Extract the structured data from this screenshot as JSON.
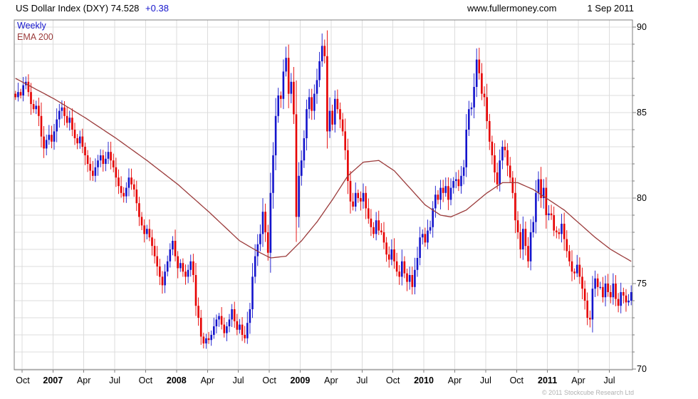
{
  "header": {
    "title": "US Dollar Index (DXY) 74.528",
    "change": "+0.38",
    "site": "www.fullermoney.com",
    "date": "1 Sep 2011"
  },
  "footer": {
    "copyright": "© 2011 Stockcube Research Ltd"
  },
  "colors": {
    "up": "#1414cc",
    "down": "#e60000",
    "ema": "#9b3b3b",
    "legend_weekly": "#1414cc",
    "legend_ema": "#9b3b3b",
    "change_text": "#1414cc",
    "grid": "#dcdcdc",
    "border": "#7f7f7f",
    "axis_text": "#000000",
    "copyright_text": "#b0b0b0"
  },
  "chart_data": {
    "type": "candlestick-with-line",
    "title": "US Dollar Index (DXY)",
    "timeframe": "Weekly",
    "overlay": "EMA 200",
    "last_price": 74.528,
    "change": 0.38,
    "as_of_date": "1 Sep 2011",
    "ylim": [
      70,
      90
    ],
    "yticks": [
      70,
      75,
      80,
      85,
      90
    ],
    "y_unit_gridlines": true,
    "xticklabels": [
      "Oct",
      "2007",
      "Apr",
      "Jul",
      "Oct",
      "2008",
      "Apr",
      "Jul",
      "Oct",
      "2009",
      "Apr",
      "Jul",
      "Oct",
      "2010",
      "Apr",
      "Jul",
      "Oct",
      "2011",
      "Apr",
      "Jul"
    ],
    "tick_week_indices": [
      3,
      15,
      27,
      39,
      51,
      63,
      75,
      87,
      99,
      111,
      123,
      135,
      147,
      159,
      171,
      183,
      195,
      207,
      219,
      231
    ],
    "weeks_total": 240,
    "series": [
      {
        "name": "Weekly",
        "style": "candles",
        "note": "weekly closes, estimated from chart, Oct 2006 - 1 Sep 2011",
        "closes": [
          85.9,
          86.2,
          86.0,
          86.6,
          86.8,
          86.2,
          85.5,
          85.2,
          85.4,
          84.8,
          83.6,
          82.9,
          83.4,
          83.7,
          83.3,
          83.9,
          84.6,
          85.1,
          85.3,
          84.8,
          84.4,
          84.7,
          84.0,
          83.5,
          83.2,
          83.6,
          83.0,
          82.5,
          82.0,
          81.6,
          81.3,
          81.8,
          82.2,
          82.5,
          82.0,
          82.3,
          82.7,
          82.2,
          81.8,
          81.2,
          80.7,
          80.3,
          80.1,
          80.6,
          81.2,
          80.8,
          80.5,
          79.7,
          78.9,
          78.4,
          77.9,
          78.2,
          77.7,
          77.2,
          76.6,
          76.0,
          75.4,
          74.9,
          75.7,
          76.3,
          77.0,
          77.5,
          76.6,
          75.9,
          76.2,
          75.7,
          75.4,
          75.8,
          76.3,
          75.5,
          73.7,
          73.0,
          71.9,
          71.5,
          71.8,
          71.7,
          72.0,
          72.5,
          72.9,
          73.1,
          72.6,
          72.1,
          72.5,
          72.9,
          73.5,
          72.8,
          72.3,
          72.6,
          72.0,
          71.8,
          72.7,
          73.5,
          75.4,
          76.6,
          77.3,
          77.9,
          79.2,
          78.0,
          76.8,
          80.3,
          82.5,
          84.8,
          86.0,
          85.8,
          87.4,
          88.2,
          86.1,
          86.8,
          84.9,
          78.9,
          81.3,
          82.2,
          83.5,
          85.2,
          85.9,
          85.1,
          86.1,
          86.9,
          88.0,
          88.9,
          88.3,
          83.9,
          85.1,
          84.3,
          85.8,
          85.2,
          84.6,
          83.9,
          82.8,
          81.0,
          79.8,
          79.5,
          80.3,
          80.0,
          79.8,
          80.3,
          79.4,
          78.8,
          78.3,
          77.9,
          78.7,
          78.1,
          78.0,
          77.4,
          76.7,
          76.4,
          77.0,
          76.3,
          75.7,
          75.4,
          76.3,
          75.6,
          75.1,
          75.5,
          74.8,
          75.8,
          76.5,
          77.7,
          77.9,
          77.4,
          78.1,
          78.3,
          79.4,
          80.2,
          79.9,
          80.6,
          80.3,
          80.7,
          79.9,
          80.6,
          81.0,
          81.1,
          80.7,
          81.3,
          81.8,
          84.0,
          85.2,
          85.3,
          86.5,
          88.1,
          87.3,
          86.1,
          85.9,
          84.5,
          83.3,
          82.5,
          81.5,
          80.8,
          82.2,
          83.0,
          82.8,
          81.9,
          81.2,
          80.3,
          78.7,
          78.0,
          77.0,
          78.2,
          77.2,
          76.3,
          78.0,
          78.6,
          80.3,
          81.1,
          80.0,
          80.6,
          79.0,
          79.1,
          79.0,
          78.1,
          78.0,
          77.9,
          78.5,
          77.6,
          76.9,
          76.3,
          75.7,
          75.6,
          76.1,
          75.4,
          74.7,
          74.0,
          73.0,
          72.9,
          74.7,
          75.3,
          74.8,
          74.8,
          74.2,
          75.0,
          74.5,
          74.2,
          75.0,
          74.1,
          73.7,
          74.5,
          74.3,
          73.9,
          74.0,
          74.5
        ]
      },
      {
        "name": "EMA 200",
        "style": "line",
        "note": "anchor points [weekIndex, value], estimated from chart",
        "anchors": [
          [
            0,
            87.0
          ],
          [
            15,
            85.8
          ],
          [
            27,
            84.7
          ],
          [
            39,
            83.5
          ],
          [
            51,
            82.2
          ],
          [
            63,
            80.8
          ],
          [
            75,
            79.2
          ],
          [
            87,
            77.5
          ],
          [
            95,
            76.8
          ],
          [
            99,
            76.5
          ],
          [
            105,
            76.6
          ],
          [
            111,
            77.5
          ],
          [
            117,
            78.6
          ],
          [
            123,
            79.9
          ],
          [
            129,
            81.3
          ],
          [
            135,
            82.1
          ],
          [
            141,
            82.2
          ],
          [
            147,
            81.6
          ],
          [
            153,
            80.6
          ],
          [
            159,
            79.6
          ],
          [
            165,
            79.0
          ],
          [
            169,
            78.9
          ],
          [
            175,
            79.3
          ],
          [
            183,
            80.3
          ],
          [
            189,
            80.9
          ],
          [
            195,
            80.9
          ],
          [
            201,
            80.5
          ],
          [
            207,
            79.9
          ],
          [
            213,
            79.3
          ],
          [
            219,
            78.5
          ],
          [
            225,
            77.7
          ],
          [
            231,
            77.0
          ],
          [
            239,
            76.3
          ]
        ]
      }
    ]
  }
}
